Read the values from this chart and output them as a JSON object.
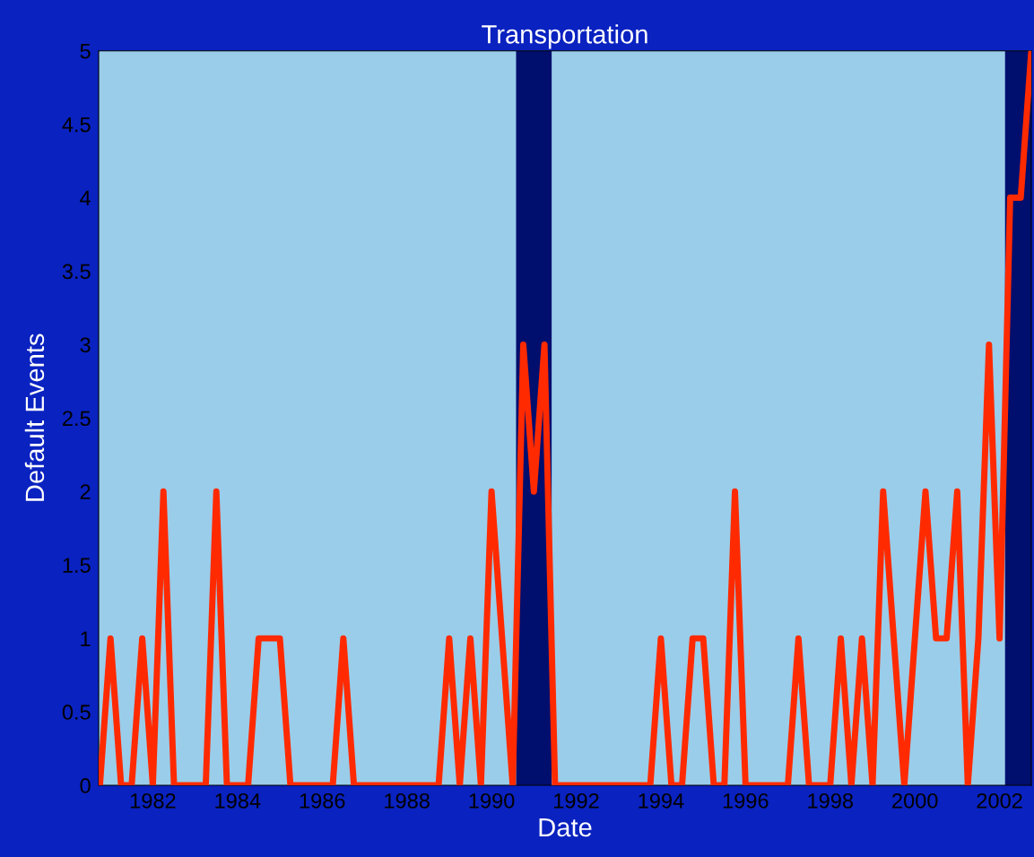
{
  "chart_data": {
    "type": "line",
    "title": "Transportation",
    "xlabel": "Date",
    "ylabel": "Default Events",
    "x": [
      1980.75,
      1981,
      1981.25,
      1981.5,
      1981.75,
      1982,
      1982.25,
      1982.5,
      1982.75,
      1983,
      1983.25,
      1983.5,
      1983.75,
      1984,
      1984.25,
      1984.5,
      1984.75,
      1985,
      1985.25,
      1985.5,
      1985.75,
      1986,
      1986.25,
      1986.5,
      1986.75,
      1987,
      1987.25,
      1987.5,
      1987.75,
      1988,
      1988.25,
      1988.5,
      1988.75,
      1989,
      1989.25,
      1989.5,
      1989.75,
      1990,
      1990.25,
      1990.5,
      1990.75,
      1991,
      1991.25,
      1991.5,
      1991.75,
      1992,
      1992.25,
      1992.5,
      1992.75,
      1993,
      1993.25,
      1993.5,
      1993.75,
      1994,
      1994.25,
      1994.5,
      1994.75,
      1995,
      1995.25,
      1995.5,
      1995.75,
      1996,
      1996.25,
      1996.5,
      1996.75,
      1997,
      1997.25,
      1997.5,
      1997.75,
      1998,
      1998.25,
      1998.5,
      1998.75,
      1999,
      1999.25,
      1999.5,
      1999.75,
      2000,
      2000.25,
      2000.5,
      2000.75,
      2001,
      2001.25,
      2001.5,
      2001.75,
      2002,
      2002.25,
      2002.5,
      2002.75
    ],
    "series": [
      {
        "color": "#ff2a00",
        "values": [
          0,
          1,
          0,
          0,
          1,
          0,
          2,
          0,
          0,
          0,
          0,
          2,
          0,
          0,
          0,
          1,
          1,
          1,
          0,
          0,
          0,
          0,
          0,
          1,
          0,
          0,
          0,
          0,
          0,
          0,
          0,
          0,
          0,
          1,
          0,
          1,
          0,
          2,
          1,
          0,
          3,
          2,
          3,
          0,
          0,
          0,
          0,
          0,
          0,
          0,
          0,
          0,
          0,
          1,
          0,
          0,
          1,
          1,
          0,
          0,
          2,
          0,
          0,
          0,
          0,
          0,
          1,
          0,
          0,
          0,
          1,
          0,
          1,
          0,
          2,
          1,
          0,
          1,
          2,
          1,
          1,
          2,
          0,
          1,
          3,
          1,
          4,
          4,
          5
        ]
      }
    ],
    "xlim": [
      1980.72,
      2002.75
    ],
    "xticks": [
      1982,
      1984,
      1986,
      1988,
      1990,
      1992,
      1994,
      1996,
      1998,
      2000,
      2002
    ],
    "ylim": [
      0,
      5
    ],
    "yticks": [
      0,
      0.5,
      1,
      1.5,
      2,
      2.5,
      3,
      3.5,
      4,
      4.5,
      5
    ],
    "bands": [
      {
        "axis": "x",
        "from": 1990.58,
        "to": 1991.42,
        "color": "#000e6e"
      },
      {
        "axis": "x",
        "from": 2002.13,
        "to": 2002.75,
        "color": "#000e6e"
      }
    ],
    "grid": false,
    "legend": false,
    "marker": "none",
    "line_style": "solid"
  }
}
